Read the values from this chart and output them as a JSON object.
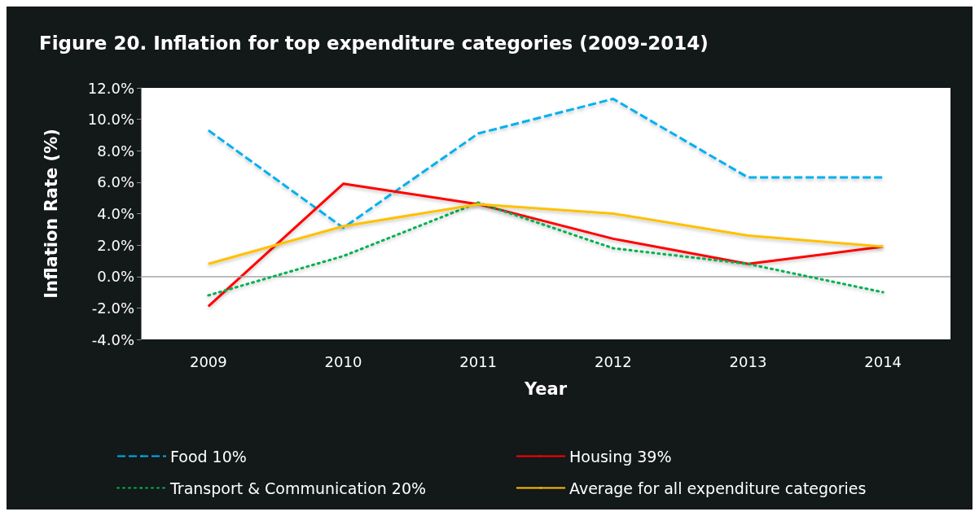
{
  "chart_data": {
    "type": "line",
    "title": "Figure 20. Inflation for top expenditure categories (2009-2014)",
    "xlabel": "Year",
    "ylabel": "Inflation Rate (%)",
    "categories": [
      "2009",
      "2010",
      "2011",
      "2012",
      "2013",
      "2014"
    ],
    "series": [
      {
        "name": "Food 10%",
        "color": "#00b0f0",
        "line_style": "dashed",
        "values": [
          9.3,
          3.1,
          9.1,
          11.3,
          6.3,
          6.3
        ]
      },
      {
        "name": "Housing 39%",
        "color": "#ff0000",
        "line_style": "solid",
        "values": [
          -1.9,
          5.9,
          4.6,
          2.4,
          0.8,
          1.9
        ]
      },
      {
        "name": "Transport & Communication 20%",
        "color": "#00b050",
        "line_style": "dotted",
        "values": [
          -1.2,
          1.3,
          4.7,
          1.8,
          0.8,
          -1.0
        ]
      },
      {
        "name": "Average for all expenditure categories",
        "color": "#ffc000",
        "line_style": "solid",
        "values": [
          0.8,
          3.2,
          4.6,
          4.0,
          2.6,
          1.9
        ]
      }
    ],
    "ylim": [
      -4,
      12
    ],
    "yticks": [
      {
        "value": -4,
        "label": "-4.0%"
      },
      {
        "value": -2,
        "label": "-2.0%"
      },
      {
        "value": 0,
        "label": "0.0%"
      },
      {
        "value": 2,
        "label": "2.0%"
      },
      {
        "value": 4,
        "label": "4.0%"
      },
      {
        "value": 6,
        "label": "6.0%"
      },
      {
        "value": 8,
        "label": "8.0%"
      },
      {
        "value": 10,
        "label": "10.0%"
      },
      {
        "value": 12,
        "label": "12.0%"
      }
    ],
    "ref_lines": [
      {
        "axis": "y",
        "value": 0,
        "color": "#a6a6a6"
      }
    ],
    "grid": false,
    "legend": "bottom",
    "marker": "none"
  }
}
